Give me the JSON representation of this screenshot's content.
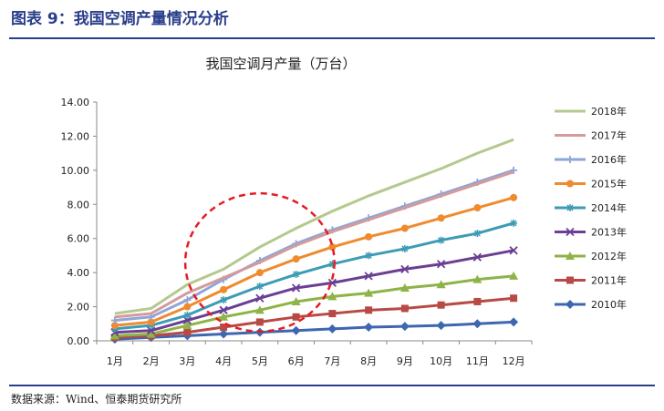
{
  "figure": {
    "title": "图表 9：我国空调产量情况分析",
    "source": "数据来源：Wind、恒泰期货研究所"
  },
  "chart_data": {
    "type": "line",
    "title": "我国空调月产量（万台）",
    "xlabel": "",
    "ylabel": "",
    "categories": [
      "1月",
      "2月",
      "3月",
      "4月",
      "5月",
      "6月",
      "7月",
      "8月",
      "9月",
      "10月",
      "11月",
      "12月"
    ],
    "ylim": [
      0,
      14
    ],
    "yticks": [
      "0.00",
      "2.00",
      "4.00",
      "6.00",
      "8.00",
      "10.00",
      "12.00",
      "14.00"
    ],
    "grid": false,
    "legend": "right",
    "series": [
      {
        "name": "2018年",
        "color": "#b3c98e",
        "marker": "none",
        "values": [
          1.6,
          1.9,
          3.3,
          4.2,
          5.5,
          6.6,
          7.6,
          8.5,
          9.3,
          10.1,
          11.0,
          11.8
        ]
      },
      {
        "name": "2017年",
        "color": "#d59a9a",
        "marker": "none",
        "values": [
          1.4,
          1.6,
          2.8,
          3.7,
          4.6,
          5.6,
          6.4,
          7.1,
          7.8,
          8.5,
          9.2,
          9.9
        ]
      },
      {
        "name": "2016年",
        "color": "#8ea6d8",
        "marker": "plus",
        "values": [
          1.2,
          1.4,
          2.4,
          3.6,
          4.7,
          5.7,
          6.5,
          7.2,
          7.9,
          8.6,
          9.3,
          10.0
        ]
      },
      {
        "name": "2015年",
        "color": "#f08a2e",
        "marker": "circle",
        "values": [
          0.9,
          1.1,
          2.0,
          3.0,
          4.0,
          4.8,
          5.5,
          6.1,
          6.6,
          7.2,
          7.8,
          8.4
        ]
      },
      {
        "name": "2014年",
        "color": "#3d9bb5",
        "marker": "star",
        "values": [
          0.7,
          0.9,
          1.5,
          2.4,
          3.2,
          3.9,
          4.5,
          5.0,
          5.4,
          5.9,
          6.3,
          6.9
        ]
      },
      {
        "name": "2013年",
        "color": "#6b3f93",
        "marker": "x",
        "values": [
          0.5,
          0.6,
          1.2,
          1.8,
          2.5,
          3.1,
          3.4,
          3.8,
          4.2,
          4.5,
          4.9,
          5.3
        ]
      },
      {
        "name": "2012年",
        "color": "#8eb346",
        "marker": "triangle",
        "values": [
          0.3,
          0.4,
          0.9,
          1.4,
          1.8,
          2.3,
          2.6,
          2.8,
          3.1,
          3.3,
          3.6,
          3.8
        ]
      },
      {
        "name": "2011年",
        "color": "#b84a45",
        "marker": "square",
        "values": [
          0.2,
          0.3,
          0.5,
          0.8,
          1.1,
          1.4,
          1.6,
          1.8,
          1.9,
          2.1,
          2.3,
          2.5
        ]
      },
      {
        "name": "2010年",
        "color": "#3e67b0",
        "marker": "diamond",
        "values": [
          0.1,
          0.2,
          0.3,
          0.4,
          0.5,
          0.6,
          0.7,
          0.8,
          0.85,
          0.9,
          1.0,
          1.1
        ]
      }
    ],
    "annotation": {
      "type": "ellipse",
      "color": "#e51c23",
      "style": "dashed",
      "x_from": "4月",
      "x_to": "6月"
    }
  }
}
